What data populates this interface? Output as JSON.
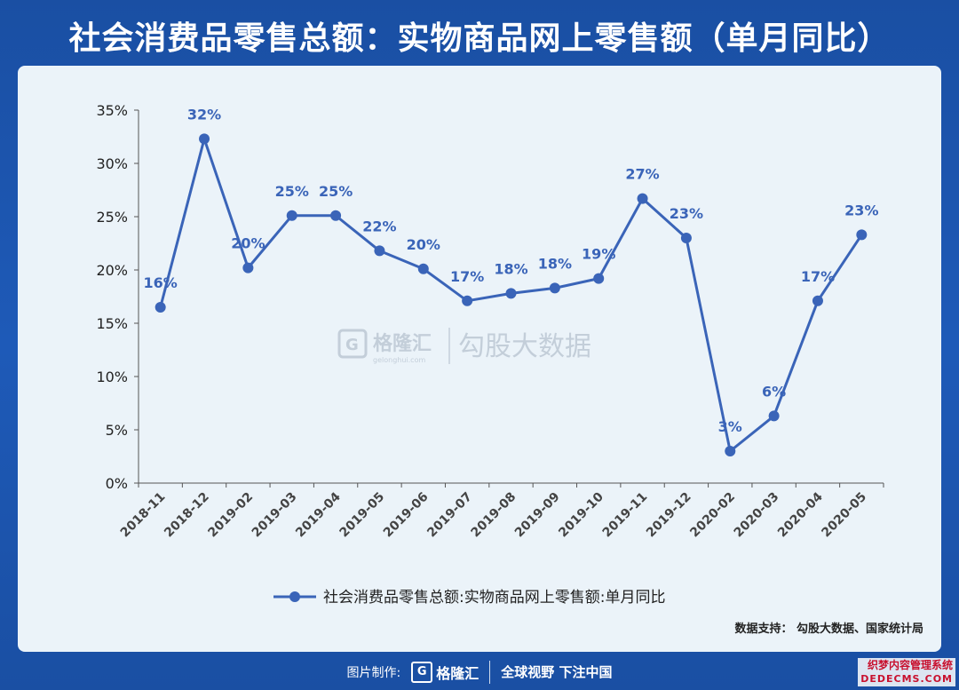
{
  "title": "社会消费品零售总额：实物商品网上零售额（单月同比）",
  "watermark": {
    "brand_cn": "格隆汇",
    "brand_url": "gelonghui.com",
    "product": "勾股大数据"
  },
  "source_note": "数据支持：  勾股大数据、国家统计局",
  "footer": {
    "made_by": "图片制作:",
    "brand": "格隆汇",
    "slogan": "全球视野 下注中国"
  },
  "corner_watermark": {
    "line1": "织梦内容管理系统",
    "line2": "DEDECMS.COM"
  },
  "colors": {
    "line": "#3a64b8",
    "label": "#3a64b8",
    "axis_text": "#222222",
    "panel_bg": "#ebf3f9",
    "page_bg": "#1e5ab8"
  },
  "chart_data": {
    "type": "line",
    "categories": [
      "2018-11",
      "2018-12",
      "2019-02",
      "2019-03",
      "2019-04",
      "2019-05",
      "2019-06",
      "2019-07",
      "2019-08",
      "2019-09",
      "2019-10",
      "2019-11",
      "2019-12",
      "2020-02",
      "2020-03",
      "2020-04",
      "2020-05"
    ],
    "series": [
      {
        "name": "社会消费品零售总额:实物商品网上零售额:单月同比",
        "values": [
          16.5,
          32.3,
          20.2,
          25.1,
          25.1,
          21.8,
          20.1,
          17.1,
          17.8,
          18.3,
          19.2,
          26.7,
          23.0,
          3.0,
          6.3,
          17.1,
          23.3
        ],
        "data_labels": [
          "16%",
          "32%",
          "20%",
          "25%",
          "25%",
          "22%",
          "20%",
          "17%",
          "18%",
          "18%",
          "19%",
          "27%",
          "23%",
          "3%",
          "6%",
          "17%",
          "23%"
        ]
      }
    ],
    "ylim": [
      0,
      35
    ],
    "yticks": [
      0,
      5,
      10,
      15,
      20,
      25,
      30,
      35
    ],
    "ytick_labels": [
      "0%",
      "5%",
      "10%",
      "15%",
      "20%",
      "25%",
      "30%",
      "35%"
    ],
    "xlabel": "",
    "ylabel": "",
    "grid": false,
    "legend_position": "bottom"
  }
}
